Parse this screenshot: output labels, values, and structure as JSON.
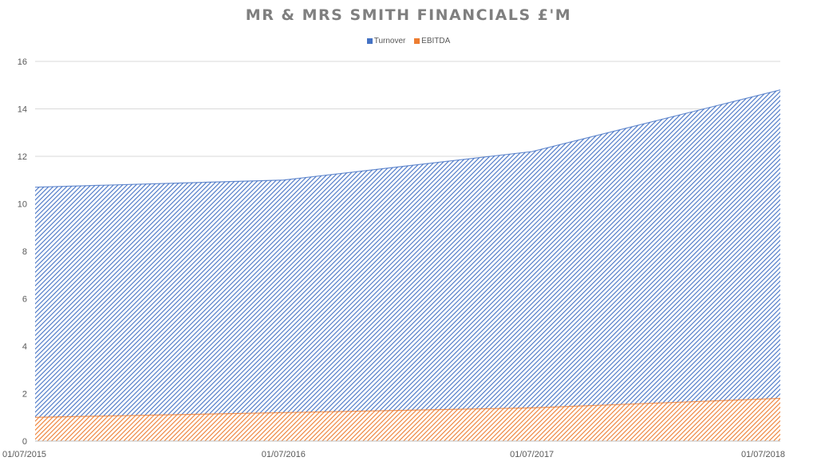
{
  "chart_data": {
    "type": "area",
    "title": "MR & MRS SMITH FINANCIALS £'M",
    "x": [
      "01/07/2015",
      "01/07/2016",
      "01/07/2017",
      "01/07/2018"
    ],
    "series": [
      {
        "name": "Turnover",
        "values": [
          10.7,
          11.0,
          12.2,
          14.8
        ],
        "color": "#4472c4"
      },
      {
        "name": "EBITDA",
        "values": [
          1.0,
          1.2,
          1.4,
          1.8
        ],
        "color": "#ed7d31"
      }
    ],
    "stacked": false,
    "ylim": [
      0,
      16
    ],
    "yticks": [
      0,
      2,
      4,
      6,
      8,
      10,
      12,
      14,
      16
    ],
    "grid": true,
    "legend_position": "top",
    "fill": "diagonal-hatch"
  }
}
